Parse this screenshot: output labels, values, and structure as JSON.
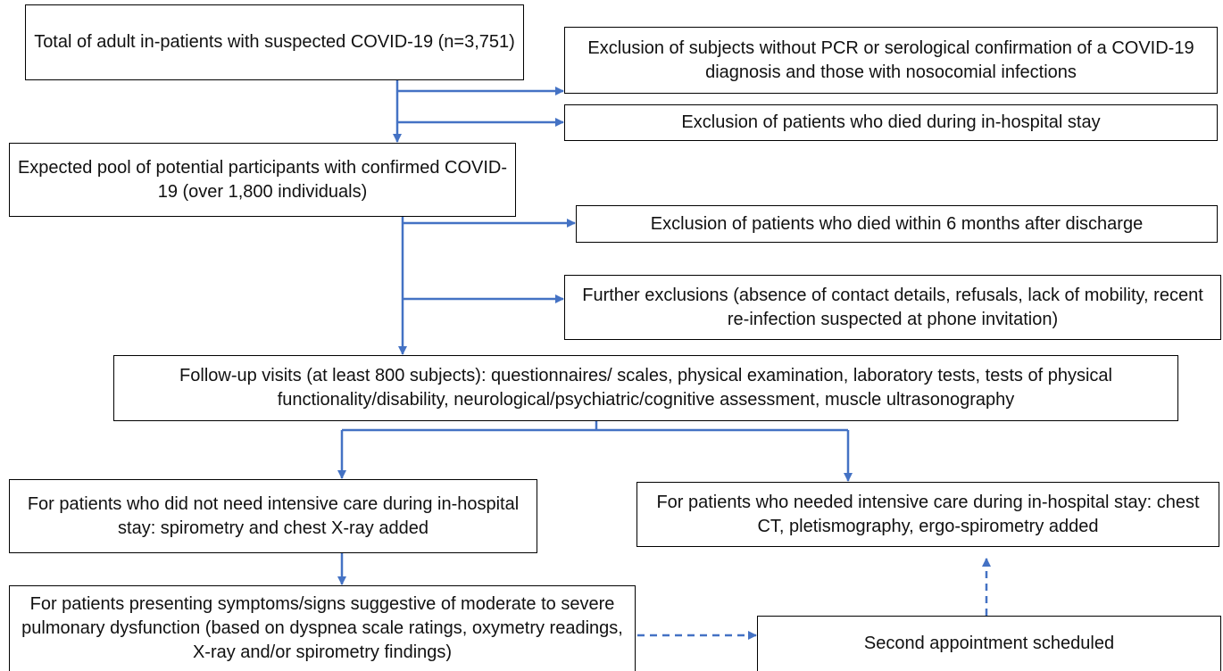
{
  "nodes": [
    {
      "label": "Total of adult in-patients with suspected COVID-19 (n=3,751)"
    },
    {
      "label": "Exclusion of subjects without PCR or serological confirmation of a COVID-19 diagnosis and those with nosocomial infections"
    },
    {
      "label": "Exclusion of patients who died during in-hospital stay"
    },
    {
      "label": "Expected pool of potential participants with confirmed COVID-19 (over 1,800 individuals)"
    },
    {
      "label": "Exclusion of patients who died within 6 months after discharge"
    },
    {
      "label": "Further exclusions (absence of contact details, refusals, lack of mobility, recent re-infection suspected at phone invitation)"
    },
    {
      "label": "Follow-up visits (at least 800 subjects): questionnaires/ scales, physical examination, laboratory tests, tests of physical functionality/disability, neurological/psychiatric/cognitive assessment, muscle ultrasonography"
    },
    {
      "label": "For patients who did not need intensive care during in-hospital stay: spirometry and chest X-ray added"
    },
    {
      "label": "For patients who needed intensive care during in-hospital stay: chest CT, pletismography, ergo-spirometry added"
    },
    {
      "label": "For patients presenting symptoms/signs suggestive of moderate to severe pulmonary dysfunction (based on dyspnea scale ratings, oxymetry readings, X-ray and/or spirometry findings)"
    },
    {
      "label": "Second appointment scheduled"
    }
  ]
}
